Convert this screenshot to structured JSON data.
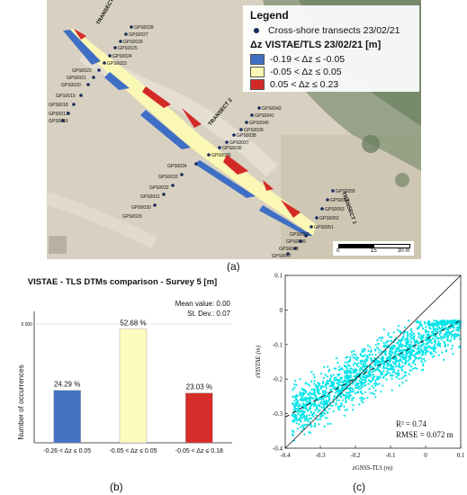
{
  "panel_a": {
    "caption": "(a)",
    "legend": {
      "title": "Legend",
      "transects": "Cross-shore transects 23/02/21",
      "dz_title": "Δz VISTAE/TLS 23/02/21 [m]",
      "classes": [
        {
          "label": "-0.19 < Δz ≤ -0.05",
          "color": "#3f6fc4"
        },
        {
          "label": "-0.05 < Δz ≤ 0.05",
          "color": "#fbf7b4"
        },
        {
          "label": "0.05 < Δz ≤ 0.23",
          "color": "#d42a27"
        }
      ]
    },
    "transect_labels": [
      "TRANSECT 3",
      "TRANSECT 2",
      "TRANSECT 1"
    ],
    "gps_labels": [
      "GPS0028",
      "GPS0027",
      "GPS0026",
      "GPS0025",
      "GPS0024",
      "GPS0023",
      "GPS0022",
      "GPS0021",
      "GPS0020",
      "GPS0019",
      "GPS0018",
      "GPS0017",
      "GPS0016",
      "GPS0042",
      "GPS0041",
      "GPS0040",
      "GPS0039",
      "GPS0038",
      "GPS0037",
      "GPS0036",
      "GPS0035",
      "GPS0034",
      "GPS0033",
      "GPS0032",
      "GPS0031",
      "GPS0030",
      "GPS0029",
      "GPS0055",
      "GPS0054",
      "GPS0053",
      "GPS0052",
      "GPS0051",
      "GPS0050",
      "GPS0049",
      "GPS0048",
      "GPS0047"
    ],
    "scale": {
      "labels": [
        "0",
        "15",
        "30 m"
      ]
    }
  },
  "panel_b": {
    "caption": "(b)",
    "chart_data": {
      "type": "bar",
      "title": "VISTAE - TLS DTMs comparison  - Survey 5 [m]",
      "mean_label": "Mean value: 0.00",
      "std_label": "St. Dev.: 0.07",
      "ylabel": "Number of occurrences",
      "ytick": "5 000",
      "categories": [
        "-0.26 < Δz ≤ 0.05",
        "-0.05 < Δz ≤ 0.05",
        "-0.05 < Δz ≤ 0.18"
      ],
      "values": [
        24.29,
        52.68,
        23.03
      ],
      "value_labels": [
        "24.29 %",
        "52.68 %",
        "23.03 %"
      ],
      "colors": [
        "#4672c4",
        "#fcfcbf",
        "#d62d2a"
      ],
      "ylim": [
        0,
        55
      ]
    }
  },
  "panel_c": {
    "caption": "(c)",
    "chart_data": {
      "type": "scatter",
      "xlabel": "zGNSS-TLS (m)",
      "ylabel": "zVISTAE (m)",
      "xlim": [
        -0.4,
        0.1
      ],
      "ylim": [
        -0.4,
        0.1
      ],
      "x_ticks": [
        "-0.4",
        "-0.3",
        "-0.2",
        "-0.1",
        "0",
        "0.1"
      ],
      "y_ticks": [
        "-0.4",
        "-0.3",
        "-0.2",
        "-0.1",
        "0",
        "0.1"
      ],
      "r2_label": "R² = 0.74",
      "rmse_label": "RMSE = 0.072 m",
      "point_color": "#00e5ea",
      "identity_line": [
        [
          -0.4,
          -0.4
        ],
        [
          0.1,
          0.1
        ]
      ],
      "fit_line": [
        [
          -0.4,
          -0.31
        ],
        [
          0.1,
          -0.03
        ]
      ]
    }
  }
}
